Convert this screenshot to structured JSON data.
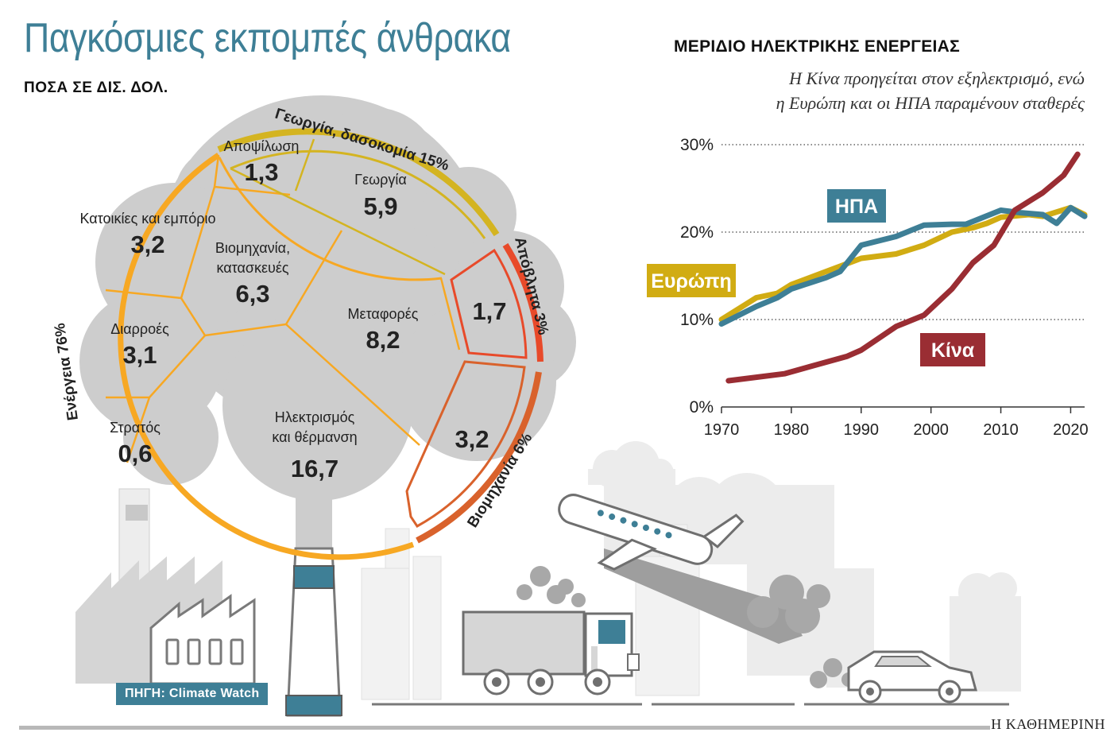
{
  "title": "Παγκόσμιες εκπομπές άνθρακα",
  "subtitle": "ΠΟΣΑ ΣΕ ΔΙΣ. ΔΟΛ.",
  "source": "ΠΗΓΗ: Climate Watch",
  "publisher": "Η ΚΑΘΗΜΕΡΙΝΗ",
  "colors": {
    "title": "#3e7f96",
    "energy": "#f7a823",
    "agriculture": "#d4b421",
    "waste": "#e84a2a",
    "industry": "#d97a2c",
    "cloud": "#cfcfcf",
    "usa": "#3e7f96",
    "europe": "#d1ac13",
    "china": "#9a2d33"
  },
  "emissions": {
    "categories": [
      {
        "name": "Ενέργεια 76%",
        "color": "#f7a823"
      },
      {
        "name": "Γεωργία, δασοκομία 15%",
        "color": "#d4b421"
      },
      {
        "name": "Απόβλητα 3%",
        "color": "#e84a2a"
      },
      {
        "name": "Βιομηχανία 6%",
        "color": "#d97a2c"
      }
    ],
    "sectors": [
      {
        "label": "Αποψίλωση",
        "value": "1,3"
      },
      {
        "label": "Γεωργία",
        "value": "5,9"
      },
      {
        "label": "Κατοικίες και εμπόριο",
        "value": "3,2"
      },
      {
        "label": "Βιομηχανία,",
        "label2": "κατασκευές",
        "value": "6,3"
      },
      {
        "label": "Μεταφορές",
        "value": "8,2"
      },
      {
        "label": "Διαρροές",
        "value": "3,1"
      },
      {
        "label": "Στρατός",
        "value": "0,6"
      },
      {
        "label": "Ηλεκτρισμός",
        "label2": "και θέρμανση",
        "value": "16,7"
      },
      {
        "label": "",
        "value": "1,7"
      },
      {
        "label": "",
        "value": "3,2"
      }
    ]
  },
  "chart_data": [
    {
      "type": "table",
      "title": "Παγκόσμιες εκπομπές άνθρακα",
      "subtitle": "ΠΟΣΑ ΣΕ ΔΙΣ. ΔΟΛ.",
      "rows": [
        {
          "group": "Ενέργεια 76%",
          "sector": "Κατοικίες και εμπόριο",
          "value": 3.2
        },
        {
          "group": "Ενέργεια 76%",
          "sector": "Βιομηχανία, κατασκευές",
          "value": 6.3
        },
        {
          "group": "Ενέργεια 76%",
          "sector": "Μεταφορές",
          "value": 8.2
        },
        {
          "group": "Ενέργεια 76%",
          "sector": "Διαρροές",
          "value": 3.1
        },
        {
          "group": "Ενέργεια 76%",
          "sector": "Στρατός",
          "value": 0.6
        },
        {
          "group": "Ενέργεια 76%",
          "sector": "Ηλεκτρισμός και θέρμανση",
          "value": 16.7
        },
        {
          "group": "Γεωργία, δασοκομία 15%",
          "sector": "Αποψίλωση",
          "value": 1.3
        },
        {
          "group": "Γεωργία, δασοκομία 15%",
          "sector": "Γεωργία",
          "value": 5.9
        },
        {
          "group": "Απόβλητα 3%",
          "sector": "",
          "value": 1.7
        },
        {
          "group": "Βιομηχανία 6%",
          "sector": "",
          "value": 3.2
        }
      ]
    },
    {
      "type": "line",
      "title": "ΜΕΡΙΔΙΟ ΗΛΕΚΤΡΙΚΗΣ ΕΝΕΡΓΕΙΑΣ",
      "subtitle_lines": [
        "Η Κίνα προηγείται στον εξηλεκτρισμό, ενώ",
        "η Ευρώπη και οι ΗΠΑ παραμένουν σταθερές"
      ],
      "xlim": [
        1970,
        2022
      ],
      "ylim": [
        0,
        30
      ],
      "x_ticks": [
        1970,
        1980,
        1990,
        2000,
        2010,
        2020
      ],
      "y_ticks": [
        0,
        10,
        20,
        30
      ],
      "y_tick_labels": [
        "0%",
        "10%",
        "20%",
        "30%"
      ],
      "grid": "horizontal dotted",
      "series": [
        {
          "name": "Ευρώπη",
          "color": "#d1ac13",
          "points": [
            [
              1970,
              10
            ],
            [
              1975,
              12.5
            ],
            [
              1978,
              13
            ],
            [
              1980,
              14
            ],
            [
              1985,
              15.5
            ],
            [
              1990,
              17
            ],
            [
              1995,
              17.5
            ],
            [
              1999,
              18.5
            ],
            [
              2003,
              20
            ],
            [
              2006,
              20.5
            ],
            [
              2008,
              21
            ],
            [
              2010,
              21.7
            ],
            [
              2014,
              22
            ],
            [
              2016,
              21.8
            ],
            [
              2020,
              22.8
            ],
            [
              2022,
              22
            ]
          ]
        },
        {
          "name": "ΗΠΑ",
          "color": "#3e7f96",
          "points": [
            [
              1970,
              9.5
            ],
            [
              1975,
              11.5
            ],
            [
              1978,
              12.5
            ],
            [
              1980,
              13.5
            ],
            [
              1985,
              14.8
            ],
            [
              1987,
              15.5
            ],
            [
              1990,
              18.5
            ],
            [
              1995,
              19.5
            ],
            [
              1999,
              20.8
            ],
            [
              2003,
              20.9
            ],
            [
              2005,
              20.9
            ],
            [
              2010,
              22.5
            ],
            [
              2013,
              22.2
            ],
            [
              2016,
              22
            ],
            [
              2018,
              21
            ],
            [
              2020,
              22.8
            ],
            [
              2022,
              21.8
            ]
          ]
        },
        {
          "name": "Κίνα",
          "color": "#9a2d33",
          "points": [
            [
              1971,
              3
            ],
            [
              1979,
              3.8
            ],
            [
              1988,
              5.8
            ],
            [
              1990,
              6.5
            ],
            [
              1995,
              9.2
            ],
            [
              1999,
              10.5
            ],
            [
              2003,
              13.5
            ],
            [
              2006,
              16.5
            ],
            [
              2009,
              18.5
            ],
            [
              2012,
              22.5
            ],
            [
              2016,
              24.5
            ],
            [
              2019,
              26.5
            ],
            [
              2021,
              28.9
            ]
          ]
        }
      ]
    }
  ]
}
